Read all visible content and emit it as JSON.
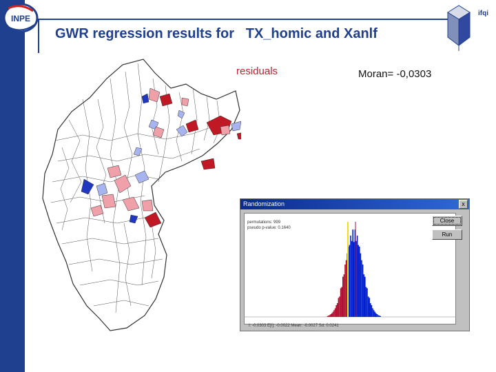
{
  "header": {
    "title": "GWR regression results for   TX_homic and Xanlf",
    "left_logo_text": "INPE",
    "right_logo_text": "ifqi"
  },
  "map": {
    "legend_label": "residuals",
    "colors": {
      "high": "#c01824",
      "medium_high": "#f0a0a8",
      "medium_low": "#a8b4f0",
      "low": "#2038c0",
      "outline": "#303030"
    }
  },
  "moran": {
    "text": "Moran= -0,0303"
  },
  "dialog": {
    "title": "Randomization",
    "close_glyph": "x",
    "buttons": {
      "close": "Close",
      "run": "Run"
    },
    "info_lines": [
      "permutations: 999",
      "pseudo p-value: 0.1640"
    ],
    "stats": "I: -0.0303   E[I]: -0.0022   Mean: -0.0027   Sd: 0.0241",
    "histogram": {
      "observed_line_color": "#e8e020",
      "expected_line_color": "#a01040",
      "bar_color_blue": "#0020d0",
      "bar_color_red": "#b01030"
    }
  }
}
